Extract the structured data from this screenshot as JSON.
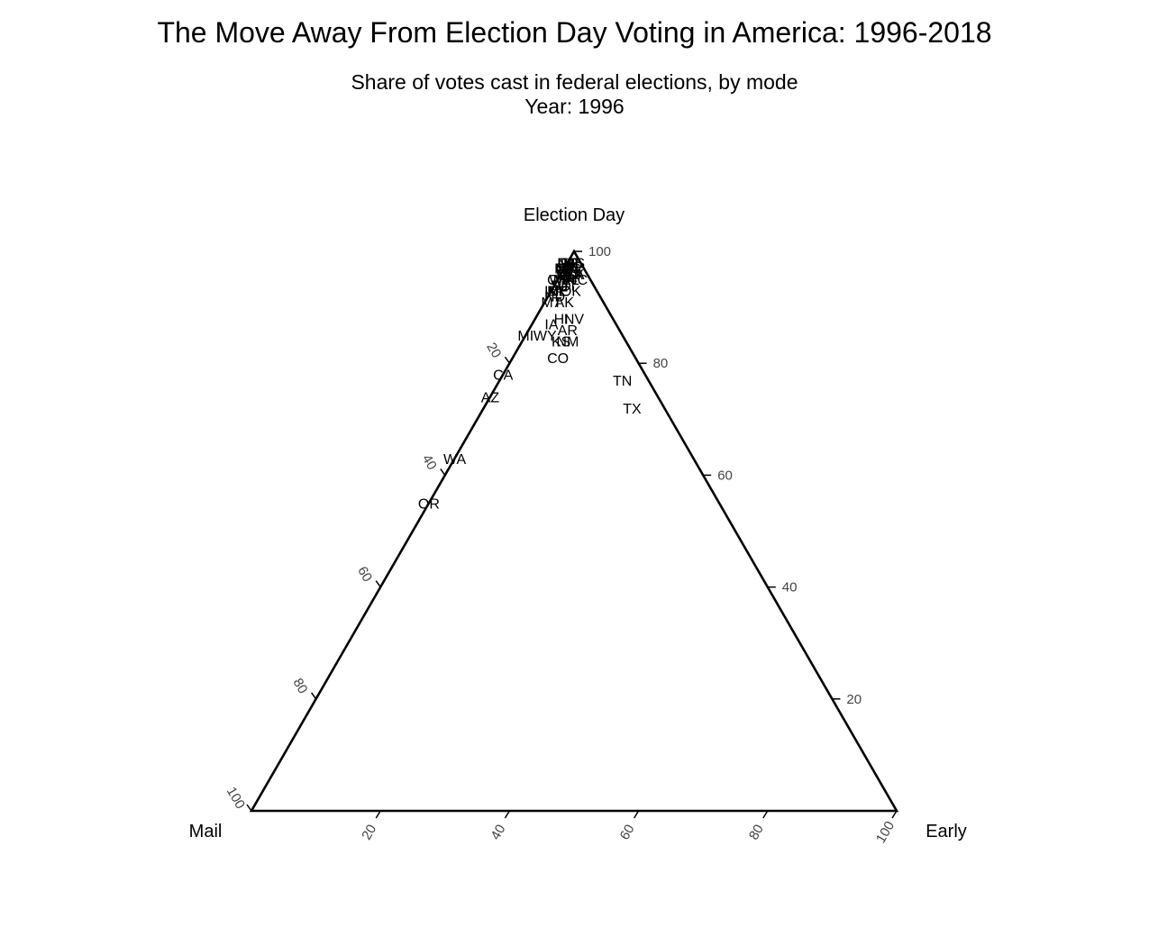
{
  "title": "The Move Away From Election Day Voting in America: 1996-2018",
  "subtitle": "Share of votes cast in federal elections, by mode",
  "year_label": "Year: 1996",
  "chart_data": {
    "type": "scatter",
    "subtype": "ternary",
    "axes": {
      "top": "Election Day",
      "left": "Mail",
      "right": "Early"
    },
    "ticks": [
      20,
      40,
      60,
      80,
      100
    ],
    "range": [
      0,
      100
    ],
    "grid": false,
    "points": [
      {
        "label": "WA",
        "mail": 37,
        "early": 0,
        "election_day": 63
      },
      {
        "label": "OR",
        "mail": 45,
        "early": 0,
        "election_day": 55
      },
      {
        "label": "CA",
        "mail": 22,
        "early": 0,
        "election_day": 78
      },
      {
        "label": "AZ",
        "mail": 26,
        "early": 0,
        "election_day": 74
      },
      {
        "label": "CO",
        "mail": 12,
        "early": 7,
        "election_day": 81
      },
      {
        "label": "MI",
        "mail": 15,
        "early": 0,
        "election_day": 85
      },
      {
        "label": "TN",
        "mail": 4,
        "early": 19,
        "election_day": 77
      },
      {
        "label": "TX",
        "mail": 5,
        "early": 23,
        "election_day": 72
      },
      {
        "label": "KS",
        "mail": 10,
        "early": 6,
        "election_day": 84
      },
      {
        "label": "NM",
        "mail": 9,
        "early": 7,
        "election_day": 84
      },
      {
        "label": "WY",
        "mail": 12,
        "early": 3,
        "election_day": 85
      },
      {
        "label": "AR",
        "mail": 8,
        "early": 6,
        "election_day": 86
      },
      {
        "label": "IA",
        "mail": 10,
        "early": 3,
        "election_day": 87
      },
      {
        "label": "NV",
        "mail": 6,
        "early": 6,
        "election_day": 88
      },
      {
        "label": "MT",
        "mail": 8,
        "early": 1,
        "election_day": 91
      },
      {
        "label": "AK",
        "mail": 6,
        "early": 3,
        "election_day": 91
      },
      {
        "label": "ID",
        "mail": 7,
        "early": 0,
        "election_day": 93
      },
      {
        "label": "ND",
        "mail": 7,
        "early": 1,
        "election_day": 92
      },
      {
        "label": "NE",
        "mail": 6,
        "early": 1,
        "election_day": 93
      },
      {
        "label": "OK",
        "mail": 4,
        "early": 3,
        "election_day": 93
      },
      {
        "label": "UT",
        "mail": 4,
        "early": 2,
        "election_day": 94
      },
      {
        "label": "SD",
        "mail": 5,
        "early": 1,
        "election_day": 94
      },
      {
        "label": "ME",
        "mail": 6,
        "early": 1,
        "election_day": 93
      },
      {
        "label": "VT",
        "mail": 5,
        "early": 1,
        "election_day": 94
      },
      {
        "label": "OH",
        "mail": 5,
        "early": 0,
        "election_day": 95
      },
      {
        "label": "WI",
        "mail": 5,
        "early": 0,
        "election_day": 95
      },
      {
        "label": "MN",
        "mail": 4,
        "early": 1,
        "election_day": 95
      },
      {
        "label": "NC",
        "mail": 2,
        "early": 3,
        "election_day": 95
      },
      {
        "label": "GA",
        "mail": 2,
        "early": 2,
        "election_day": 96
      },
      {
        "label": "FL",
        "mail": 3,
        "early": 2,
        "election_day": 95
      },
      {
        "label": "LA",
        "mail": 2,
        "early": 2,
        "election_day": 96
      },
      {
        "label": "IL",
        "mail": 3,
        "early": 1,
        "election_day": 96
      },
      {
        "label": "IN",
        "mail": 2,
        "early": 1,
        "election_day": 97
      },
      {
        "label": "KY",
        "mail": 2,
        "early": 2,
        "election_day": 96
      },
      {
        "label": "MO",
        "mail": 3,
        "early": 1,
        "election_day": 96
      },
      {
        "label": "MD",
        "mail": 3,
        "early": 1,
        "election_day": 96
      },
      {
        "label": "MA",
        "mail": 3,
        "early": 1,
        "election_day": 96
      },
      {
        "label": "NJ",
        "mail": 3,
        "early": 0,
        "election_day": 97
      },
      {
        "label": "NY",
        "mail": 3,
        "early": 0,
        "election_day": 97
      },
      {
        "label": "PA",
        "mail": 2,
        "early": 1,
        "election_day": 97
      },
      {
        "label": "CT",
        "mail": 3,
        "early": 0,
        "election_day": 97
      },
      {
        "label": "DE",
        "mail": 2,
        "early": 0,
        "election_day": 98
      },
      {
        "label": "RI",
        "mail": 2,
        "early": 0,
        "election_day": 98
      },
      {
        "label": "NH",
        "mail": 2,
        "early": 0,
        "election_day": 98
      },
      {
        "label": "SC",
        "mail": 2,
        "early": 1,
        "election_day": 97
      },
      {
        "label": "AL",
        "mail": 1,
        "early": 1,
        "election_day": 98
      },
      {
        "label": "MS",
        "mail": 1,
        "early": 1,
        "election_day": 98
      },
      {
        "label": "VA",
        "mail": 2,
        "early": 1,
        "election_day": 97
      },
      {
        "label": "WV",
        "mail": 2,
        "early": 1,
        "election_day": 97
      },
      {
        "label": "HI",
        "mail": 8,
        "early": 4,
        "election_day": 88
      },
      {
        "label": "DC",
        "mail": 2,
        "early": 0,
        "election_day": 98
      }
    ]
  }
}
